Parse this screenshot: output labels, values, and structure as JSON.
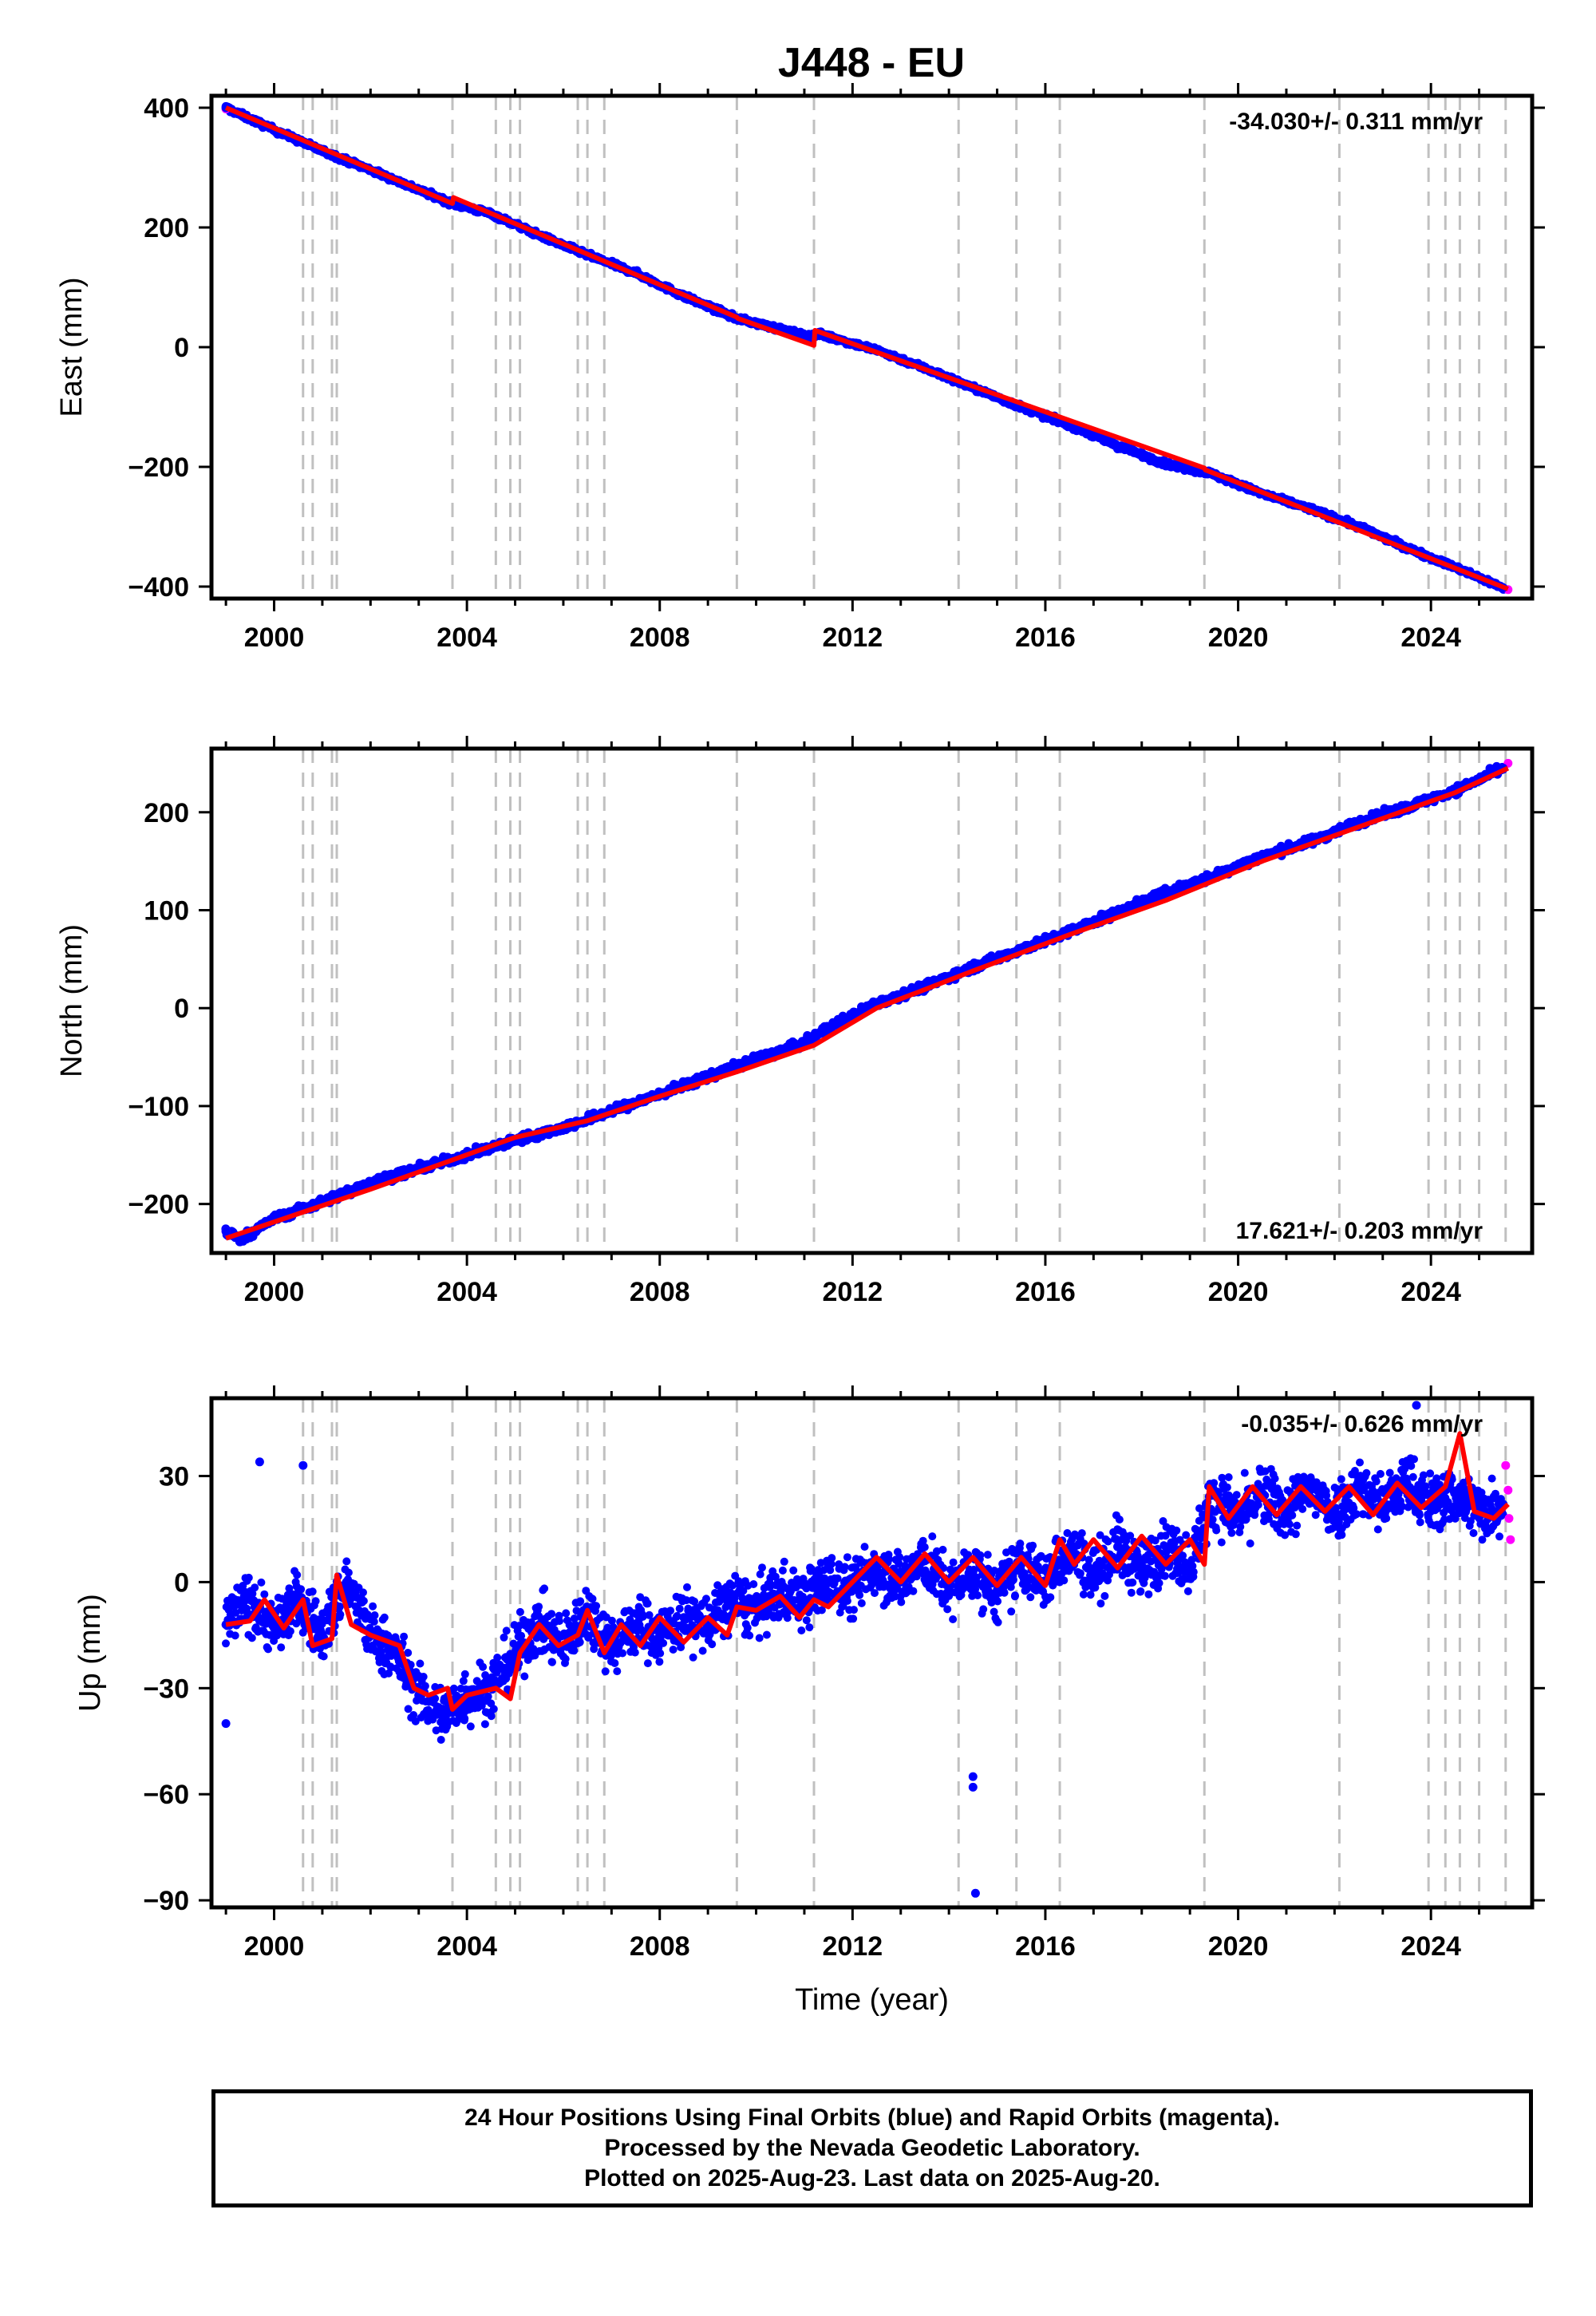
{
  "title": "J448 - EU",
  "chart_data": [
    {
      "type": "scatter",
      "component": "East",
      "ylabel": "East (mm)",
      "xlabel": "",
      "rate_text": "-34.030+/- 0.311 mm/yr",
      "rate_position": "top-right",
      "xlim": [
        1998.7,
        2026.1
      ],
      "ylim": [
        -420,
        420
      ],
      "xticks": [
        2000,
        2004,
        2008,
        2012,
        2016,
        2020,
        2024
      ],
      "yticks": [
        -400,
        -200,
        0,
        200,
        400
      ],
      "series": [
        {
          "name": "Final Orbits (blue)",
          "color": "#0000ff",
          "x": [
            1999.0,
            2000.0,
            2001.0,
            2002.0,
            2003.0,
            2003.7,
            2004.5,
            2005.5,
            2006.5,
            2007.5,
            2008.5,
            2009.6,
            2010.5,
            2011.1,
            2011.3,
            2012.5,
            2013.5,
            2014.5,
            2015.5,
            2016.5,
            2017.5,
            2018.5,
            2019.4,
            2020.5,
            2021.5,
            2022.5,
            2023.5,
            2024.5,
            2025.5
          ],
          "y": [
            400,
            363,
            328,
            296,
            263,
            240,
            223,
            187,
            154,
            124,
            85,
            48,
            30,
            18,
            22,
            -5,
            -35,
            -68,
            -100,
            -130,
            -165,
            -195,
            -210,
            -245,
            -270,
            -300,
            -335,
            -368,
            -402
          ]
        },
        {
          "name": "Rapid Orbits (magenta)",
          "color": "#ff00ff",
          "x": [
            1999.0,
            2025.6
          ],
          "y": [
            398,
            -405
          ]
        }
      ],
      "model": {
        "name": "model fit",
        "color": "#ff0000",
        "x": [
          1999.0,
          2003.7,
          2003.72,
          2009.6,
          2009.62,
          2011.2,
          2011.22,
          2019.3,
          2019.32,
          2025.6
        ],
        "y": [
          400,
          240,
          250,
          50,
          48,
          3,
          28,
          -202,
          -205,
          -404
        ]
      },
      "step_epochs": [
        2000.6,
        2000.8,
        2001.2,
        2001.3,
        2003.7,
        2004.6,
        2004.9,
        2005.1,
        2006.3,
        2006.5,
        2006.85,
        2009.6,
        2011.2,
        2014.2,
        2015.4,
        2016.3,
        2019.3,
        2022.1,
        2023.95,
        2024.3,
        2024.6,
        2025.0,
        2025.55
      ]
    },
    {
      "type": "scatter",
      "component": "North",
      "ylabel": "North (mm)",
      "xlabel": "",
      "rate_text": "17.621+/- 0.203 mm/yr",
      "rate_position": "bottom-right",
      "xlim": [
        1998.7,
        2026.1
      ],
      "ylim": [
        -250,
        265
      ],
      "xticks": [
        2000,
        2004,
        2008,
        2012,
        2016,
        2020,
        2024
      ],
      "yticks": [
        -200,
        -100,
        0,
        100,
        200
      ],
      "series": [
        {
          "name": "Final Orbits (blue)",
          "color": "#0000ff",
          "x": [
            1999.0,
            1999.3,
            2000.0,
            2001.0,
            2002.0,
            2003.0,
            2004.0,
            2005.0,
            2006.0,
            2007.0,
            2008.0,
            2009.0,
            2010.0,
            2011.0,
            2011.5,
            2012.5,
            2013.5,
            2014.5,
            2015.5,
            2016.5,
            2017.5,
            2018.5,
            2019.5,
            2020.5,
            2021.5,
            2022.5,
            2023.5,
            2024.5,
            2025.5
          ],
          "y": [
            -228,
            -236,
            -215,
            -198,
            -178,
            -164,
            -150,
            -135,
            -122,
            -105,
            -88,
            -70,
            -52,
            -36,
            -20,
            5,
            22,
            42,
            60,
            78,
            98,
            118,
            135,
            155,
            170,
            190,
            205,
            222,
            245
          ]
        },
        {
          "name": "Rapid Orbits (magenta)",
          "color": "#ff00ff",
          "x": [
            1999.0,
            2025.6
          ],
          "y": [
            -228,
            250
          ]
        }
      ],
      "model": {
        "name": "model fit",
        "color": "#ff0000",
        "x": [
          1999.0,
          2000.5,
          2002.0,
          2003.7,
          2005.0,
          2006.5,
          2008.0,
          2009.6,
          2011.2,
          2012.5,
          2014.5,
          2016.5,
          2018.5,
          2020.5,
          2022.5,
          2024.5,
          2025.6
        ],
        "y": [
          -235,
          -210,
          -185,
          -155,
          -132,
          -115,
          -90,
          -65,
          -38,
          0,
          38,
          75,
          110,
          150,
          185,
          220,
          245
        ]
      },
      "step_epochs": [
        2000.6,
        2000.8,
        2001.2,
        2001.3,
        2003.7,
        2004.6,
        2004.9,
        2005.1,
        2006.3,
        2006.5,
        2006.85,
        2009.6,
        2011.2,
        2014.2,
        2015.4,
        2016.3,
        2019.3,
        2022.1,
        2023.95,
        2024.3,
        2024.6,
        2025.0,
        2025.55
      ]
    },
    {
      "type": "scatter",
      "component": "Up",
      "ylabel": "Up (mm)",
      "xlabel": "Time (year)",
      "rate_text": "-0.035+/- 0.626 mm/yr",
      "rate_position": "top-right",
      "xlim": [
        1998.7,
        2026.1
      ],
      "ylim": [
        -92,
        52
      ],
      "xticks": [
        2000,
        2004,
        2008,
        2012,
        2016,
        2020,
        2024
      ],
      "yticks": [
        -90,
        -60,
        -30,
        0,
        30
      ],
      "series": [
        {
          "name": "Final Orbits (blue)",
          "color": "#0000ff",
          "x": [
            1999.0,
            1999.5,
            2000.0,
            2000.5,
            2001.0,
            2001.5,
            2002.0,
            2002.5,
            2003.0,
            2003.5,
            2004.0,
            2004.5,
            2005.0,
            2005.5,
            2006.0,
            2006.5,
            2007.0,
            2007.5,
            2008.0,
            2008.5,
            2009.0,
            2009.5,
            2010.0,
            2010.5,
            2011.0,
            2011.5,
            2012.0,
            2012.5,
            2013.0,
            2013.5,
            2014.0,
            2014.5,
            2015.0,
            2015.5,
            2016.0,
            2016.5,
            2017.0,
            2017.5,
            2018.0,
            2018.5,
            2019.0,
            2019.5,
            2020.0,
            2020.5,
            2021.0,
            2021.5,
            2022.0,
            2022.5,
            2023.0,
            2023.5,
            2024.0,
            2024.5,
            2025.0,
            2025.5
          ],
          "y": [
            -12,
            -5,
            -13,
            -5,
            -15,
            0,
            -15,
            -20,
            -32,
            -38,
            -32,
            -30,
            -20,
            -12,
            -18,
            -8,
            -18,
            -12,
            -15,
            -10,
            -12,
            -5,
            -8,
            -3,
            -5,
            0,
            -2,
            5,
            0,
            6,
            -2,
            3,
            -3,
            5,
            0,
            10,
            2,
            10,
            3,
            10,
            5,
            25,
            18,
            25,
            20,
            26,
            20,
            27,
            22,
            28,
            22,
            25,
            20,
            22
          ]
        },
        {
          "name": "Outliers",
          "color": "#0000ff",
          "x": [
            1999.0,
            1999.7,
            2000.6,
            2014.5,
            2014.5,
            2014.55,
            2023.7
          ],
          "y": [
            -40,
            34,
            33,
            -55,
            -58,
            -88,
            50
          ]
        },
        {
          "name": "Rapid Orbits (magenta)",
          "color": "#ff00ff",
          "x": [
            2025.55,
            2025.6,
            2025.62,
            2025.65
          ],
          "y": [
            33,
            26,
            18,
            12
          ]
        }
      ],
      "model": {
        "name": "model fit",
        "color": "#ff0000",
        "x": [
          1999.0,
          1999.5,
          1999.8,
          2000.2,
          2000.6,
          2000.8,
          2001.2,
          2001.3,
          2001.6,
          2002.0,
          2002.6,
          2002.9,
          2003.2,
          2003.6,
          2003.7,
          2004.0,
          2004.6,
          2004.9,
          2005.1,
          2005.5,
          2005.9,
          2006.3,
          2006.5,
          2006.85,
          2007.2,
          2007.6,
          2008.0,
          2008.5,
          2009.0,
          2009.4,
          2009.6,
          2010.0,
          2010.5,
          2010.9,
          2011.2,
          2011.5,
          2012.0,
          2012.5,
          2013.0,
          2013.5,
          2014.0,
          2014.5,
          2015.0,
          2015.5,
          2016.0,
          2016.3,
          2016.6,
          2017.0,
          2017.5,
          2018.0,
          2018.5,
          2019.0,
          2019.3,
          2019.4,
          2019.8,
          2020.3,
          2020.8,
          2021.3,
          2021.8,
          2022.3,
          2022.8,
          2023.3,
          2023.8,
          2024.3,
          2024.6,
          2024.9,
          2025.3,
          2025.6
        ],
        "y": [
          -12,
          -11,
          -5,
          -13,
          -5,
          -18,
          -16,
          2,
          -12,
          -15,
          -18,
          -30,
          -32,
          -30,
          -36,
          -32,
          -30,
          -33,
          -20,
          -12,
          -18,
          -15,
          -8,
          -20,
          -12,
          -18,
          -10,
          -17,
          -10,
          -15,
          -7,
          -8,
          -4,
          -10,
          -5,
          -7,
          0,
          7,
          0,
          8,
          0,
          7,
          -1,
          7,
          -1,
          12,
          5,
          12,
          4,
          13,
          5,
          12,
          5,
          27,
          18,
          27,
          19,
          27,
          20,
          27,
          19,
          28,
          21,
          27,
          42,
          20,
          18,
          22
        ]
      },
      "step_epochs": [
        2000.6,
        2000.8,
        2001.2,
        2001.3,
        2003.7,
        2004.6,
        2004.9,
        2005.1,
        2006.3,
        2006.5,
        2006.85,
        2009.6,
        2011.2,
        2014.2,
        2015.4,
        2016.3,
        2019.3,
        2022.1,
        2023.95,
        2024.3,
        2024.6,
        2025.0,
        2025.55
      ]
    }
  ],
  "footer": {
    "line1": "24 Hour Positions Using Final Orbits (blue) and Rapid Orbits (magenta).",
    "line2": "Processed by the Nevada Geodetic Laboratory.",
    "line3": "Plotted on 2025-Aug-23. Last data on 2025-Aug-20."
  }
}
